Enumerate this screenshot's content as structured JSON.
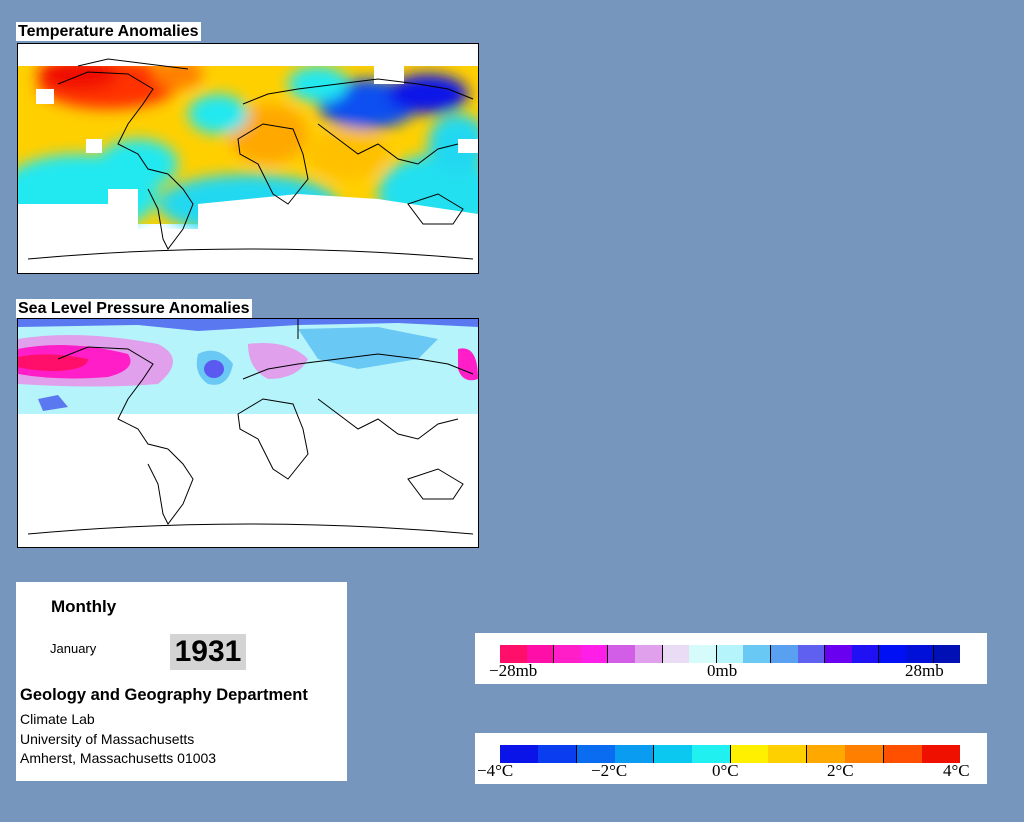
{
  "temperature_map": {
    "title": "Temperature Anomalies"
  },
  "pressure_map": {
    "title": "Sea Level Pressure Anomalies"
  },
  "info": {
    "frequency": "Monthly",
    "month": "January",
    "year": "1931",
    "department": "Geology and Geography Department",
    "lines": [
      "Climate Lab",
      "University of Massachusetts",
      "Amherst, Massachusetts 01003"
    ]
  },
  "pressure_legend": {
    "colors": [
      "#ff0f6a",
      "#ff0fa8",
      "#ff1ec8",
      "#ff1ee8",
      "#d25ee8",
      "#e0a0ec",
      "#eadcf4",
      "#d6fbfb",
      "#b6f4fb",
      "#6ac8f4",
      "#5aa0f0",
      "#6060f0",
      "#6a00f0",
      "#2010f4",
      "#0010f4",
      "#0010d8",
      "#0010b4"
    ],
    "labels": [
      "−28mb",
      "0mb",
      "28mb"
    ]
  },
  "temperature_legend": {
    "colors": [
      "#0a14e8",
      "#0a3cf0",
      "#0a6cf0",
      "#0a9cf0",
      "#0ac8f0",
      "#20f0f0",
      "#fff000",
      "#ffd000",
      "#ffa800",
      "#ff8000",
      "#ff5000",
      "#f01000"
    ],
    "labels": [
      "−4°C",
      "−2°C",
      "0°C",
      "2°C",
      "4°C"
    ]
  }
}
